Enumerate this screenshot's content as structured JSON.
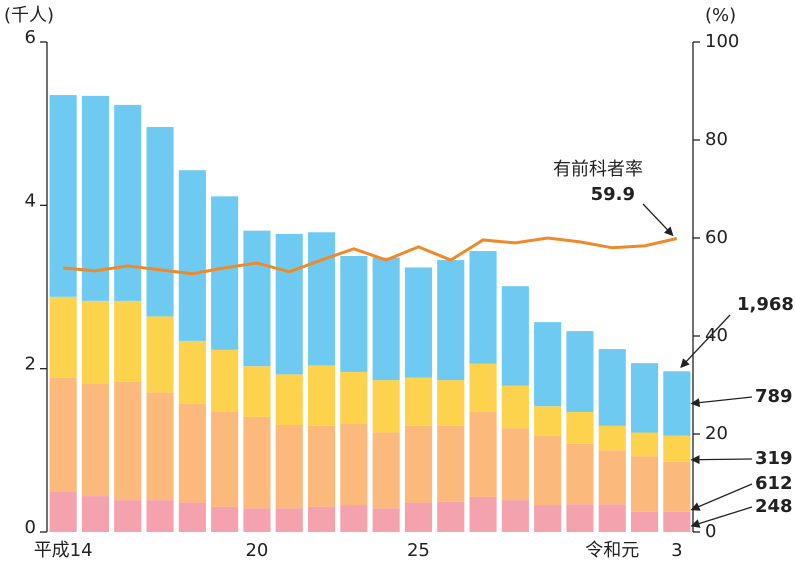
{
  "chart_data": {
    "type": "bar",
    "left_unit": "(千人)",
    "right_unit": "(%)",
    "categories": [
      "平成14",
      null,
      null,
      null,
      null,
      null,
      "20",
      null,
      null,
      null,
      null,
      "25",
      null,
      null,
      null,
      null,
      null,
      "令和元",
      null,
      "3"
    ],
    "series": [
      {
        "color": "#f4a2ae",
        "label_color": "#ee7a8c",
        "values": [
          0.49,
          0.44,
          0.39,
          0.39,
          0.36,
          0.31,
          0.29,
          0.29,
          0.31,
          0.33,
          0.29,
          0.36,
          0.37,
          0.43,
          0.39,
          0.33,
          0.34,
          0.34,
          0.248,
          0.248
        ],
        "value_labels": [
          null,
          null,
          null,
          null,
          null,
          null,
          null,
          null,
          null,
          null,
          null,
          null,
          null,
          null,
          null,
          null,
          null,
          null,
          null,
          "248"
        ]
      },
      {
        "color": "#fbb97c",
        "label_color": "#f39a3c",
        "values": [
          1.4,
          1.38,
          1.45,
          1.32,
          1.21,
          1.16,
          1.12,
          1.02,
          0.99,
          1.0,
          0.93,
          0.94,
          0.93,
          1.04,
          0.88,
          0.85,
          0.74,
          0.66,
          0.68,
          0.612
        ],
        "value_labels": [
          null,
          null,
          null,
          null,
          null,
          null,
          null,
          null,
          null,
          null,
          null,
          null,
          null,
          null,
          null,
          null,
          null,
          null,
          null,
          "612"
        ]
      },
      {
        "color": "#fdd24c",
        "label_color": "#f2b600",
        "values": [
          0.99,
          1.01,
          0.99,
          0.93,
          0.77,
          0.76,
          0.62,
          0.62,
          0.74,
          0.63,
          0.64,
          0.59,
          0.56,
          0.59,
          0.52,
          0.36,
          0.39,
          0.3,
          0.29,
          0.319
        ],
        "value_labels": [
          null,
          null,
          null,
          null,
          null,
          null,
          null,
          null,
          null,
          null,
          null,
          null,
          null,
          null,
          null,
          null,
          null,
          null,
          null,
          "319"
        ]
      },
      {
        "color": "#6fcaf1",
        "label_color": "#3bb4e8",
        "values": [
          2.47,
          2.51,
          2.4,
          2.32,
          2.09,
          1.88,
          1.66,
          1.72,
          1.63,
          1.42,
          1.5,
          1.35,
          1.47,
          1.38,
          1.22,
          1.03,
          0.99,
          0.94,
          0.85,
          0.789
        ],
        "value_labels": [
          null,
          null,
          null,
          null,
          null,
          null,
          null,
          null,
          null,
          null,
          null,
          null,
          null,
          null,
          null,
          null,
          null,
          null,
          null,
          "789"
        ]
      },
      {
        "type": "line",
        "axis": "y2",
        "name": "有前科者率",
        "color": "#ee8a2a",
        "values": [
          53.9,
          53.3,
          54.3,
          53.5,
          52.7,
          53.9,
          54.9,
          53.1,
          55.5,
          57.8,
          55.5,
          58.2,
          55.5,
          59.6,
          59.0,
          60.0,
          59.2,
          58.0,
          58.4,
          59.9
        ],
        "value_labels": [
          null,
          null,
          null,
          null,
          null,
          null,
          null,
          null,
          null,
          null,
          null,
          null,
          null,
          null,
          null,
          null,
          null,
          null,
          null,
          "59.9"
        ]
      }
    ],
    "total_label": "1,968",
    "ylim": [
      0,
      6
    ],
    "yticks": [
      0,
      2,
      4,
      6
    ],
    "y2lim": [
      0,
      100
    ],
    "y2ticks": [
      0,
      20,
      40,
      60,
      80,
      100
    ]
  }
}
